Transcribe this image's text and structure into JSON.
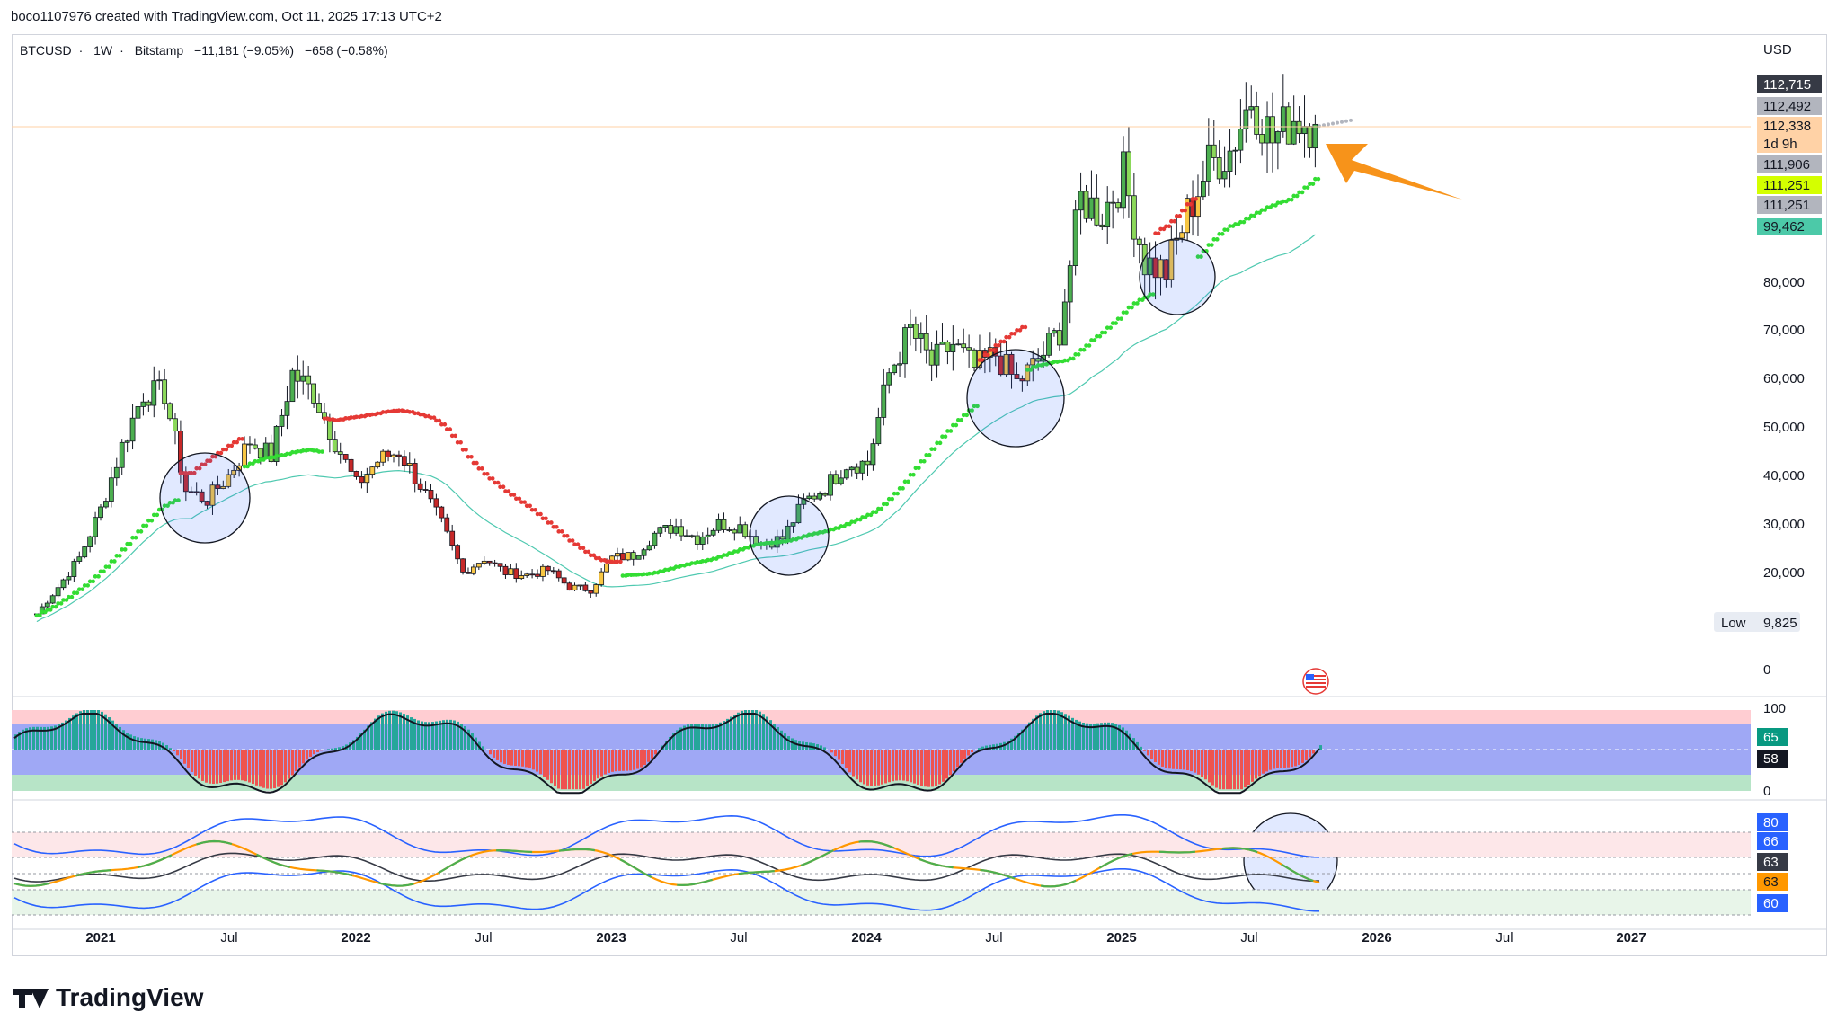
{
  "header": {
    "created": "boco1107976 created with TradingView.com, Oct 11, 2025 17:13 UTC+2"
  },
  "symbol": {
    "pair": "BTCUSD",
    "interval": "1W",
    "exchange": "Bitstamp",
    "change": "−11,181 (−9.05%)",
    "change2": "−658 (−0.58%)"
  },
  "currency": "USD",
  "price_axis": {
    "ticks": [
      "80,000",
      "70,000",
      "60,000",
      "50,000",
      "40,000",
      "30,000",
      "20,000",
      "0"
    ],
    "low_label": "Low",
    "low_value": "9,825"
  },
  "price_tags": [
    {
      "text": "112,715",
      "bg": "#363a45",
      "fg": "#ffffff"
    },
    {
      "text": "112,492",
      "bg": "#b2b5be",
      "fg": "#131722"
    },
    {
      "text": "112,338",
      "bg": "#ffd2a6",
      "fg": "#131722"
    },
    {
      "text": "1d 9h",
      "bg": "#ffd2a6",
      "fg": "#131722"
    },
    {
      "text": "111,906",
      "bg": "#b2b5be",
      "fg": "#131722"
    },
    {
      "text": "111,251",
      "bg": "#d4ff00",
      "fg": "#131722"
    },
    {
      "text": "111,251",
      "bg": "#b2b5be",
      "fg": "#131722"
    },
    {
      "text": "99,462",
      "bg": "#4cc9a8",
      "fg": "#131722"
    }
  ],
  "stoch_axis": {
    "ticks": [
      "100",
      "0"
    ],
    "tags": [
      {
        "text": "65",
        "bg": "#089981",
        "fg": "#ffffff"
      },
      {
        "text": "58",
        "bg": "#131722",
        "fg": "#ffffff"
      }
    ]
  },
  "rsi_axis": {
    "tags": [
      {
        "text": "80",
        "bg": "#2962ff",
        "fg": "#ffffff"
      },
      {
        "text": "66",
        "bg": "#2962ff",
        "fg": "#ffffff"
      },
      {
        "text": "63",
        "bg": "#363a45",
        "fg": "#ffffff"
      },
      {
        "text": "63",
        "bg": "#ff9800",
        "fg": "#131722"
      },
      {
        "text": "60",
        "bg": "#2962ff",
        "fg": "#ffffff"
      }
    ]
  },
  "time_axis": {
    "labels": [
      "2021",
      "Jul",
      "2022",
      "Jul",
      "2023",
      "Jul",
      "2024",
      "Jul",
      "2025",
      "Jul",
      "2026",
      "Jul",
      "2027"
    ]
  },
  "logo": {
    "text": "TradingView"
  },
  "chart_data": {
    "type": "candlestick",
    "interval": "1W",
    "x_range": [
      "2020-09",
      "2027-04"
    ],
    "y_range": [
      0,
      125000
    ],
    "weekly_close_path": [
      {
        "date": "2020-10",
        "close": 11500
      },
      {
        "date": "2020-11",
        "close": 17000
      },
      {
        "date": "2020-12",
        "close": 23000
      },
      {
        "date": "2021-01",
        "close": 33000
      },
      {
        "date": "2021-02",
        "close": 46000
      },
      {
        "date": "2021-03",
        "close": 57000
      },
      {
        "date": "2021-04",
        "close": 57000
      },
      {
        "date": "2021-05",
        "close": 37000
      },
      {
        "date": "2021-06",
        "close": 35000
      },
      {
        "date": "2021-07",
        "close": 40000
      },
      {
        "date": "2021-08",
        "close": 47000
      },
      {
        "date": "2021-09",
        "close": 44000
      },
      {
        "date": "2021-10",
        "close": 61000
      },
      {
        "date": "2021-11",
        "close": 57000
      },
      {
        "date": "2021-12",
        "close": 47000
      },
      {
        "date": "2022-01",
        "close": 38000
      },
      {
        "date": "2022-02",
        "close": 43000
      },
      {
        "date": "2022-03",
        "close": 45000
      },
      {
        "date": "2022-04",
        "close": 38000
      },
      {
        "date": "2022-05",
        "close": 30000
      },
      {
        "date": "2022-06",
        "close": 20000
      },
      {
        "date": "2022-07",
        "close": 23000
      },
      {
        "date": "2022-08",
        "close": 20000
      },
      {
        "date": "2022-09",
        "close": 19500
      },
      {
        "date": "2022-10",
        "close": 20500
      },
      {
        "date": "2022-11",
        "close": 17000
      },
      {
        "date": "2022-12",
        "close": 16500
      },
      {
        "date": "2023-01",
        "close": 23000
      },
      {
        "date": "2023-02",
        "close": 23500
      },
      {
        "date": "2023-03",
        "close": 28000
      },
      {
        "date": "2023-04",
        "close": 29500
      },
      {
        "date": "2023-05",
        "close": 27000
      },
      {
        "date": "2023-06",
        "close": 30000
      },
      {
        "date": "2023-07",
        "close": 29500
      },
      {
        "date": "2023-08",
        "close": 26000
      },
      {
        "date": "2023-09",
        "close": 27000
      },
      {
        "date": "2023-10",
        "close": 34500
      },
      {
        "date": "2023-11",
        "close": 37500
      },
      {
        "date": "2023-12",
        "close": 42500
      },
      {
        "date": "2024-01",
        "close": 42500
      },
      {
        "date": "2024-02",
        "close": 61000
      },
      {
        "date": "2024-03",
        "close": 70000
      },
      {
        "date": "2024-04",
        "close": 63000
      },
      {
        "date": "2024-05",
        "close": 67000
      },
      {
        "date": "2024-06",
        "close": 62000
      },
      {
        "date": "2024-07",
        "close": 65000
      },
      {
        "date": "2024-08",
        "close": 59000
      },
      {
        "date": "2024-09",
        "close": 63500
      },
      {
        "date": "2024-10",
        "close": 70000
      },
      {
        "date": "2024-11",
        "close": 97000
      },
      {
        "date": "2024-12",
        "close": 94000
      },
      {
        "date": "2025-01",
        "close": 102000
      },
      {
        "date": "2025-02",
        "close": 84000
      },
      {
        "date": "2025-03",
        "close": 82000
      },
      {
        "date": "2025-04",
        "close": 94000
      },
      {
        "date": "2025-05",
        "close": 104000
      },
      {
        "date": "2025-06",
        "close": 107000
      },
      {
        "date": "2025-07",
        "close": 118000
      },
      {
        "date": "2025-08",
        "close": 109000
      },
      {
        "date": "2025-09",
        "close": 114000
      },
      {
        "date": "2025-10",
        "close": 112338
      }
    ],
    "lower_panes": [
      "stochastic 0-100",
      "rsi"
    ]
  }
}
